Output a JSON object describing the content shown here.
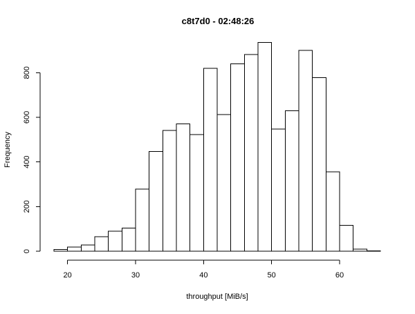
{
  "chart_data": {
    "type": "bar",
    "title": "c8t7d0 - 02:48:26",
    "xlabel": "throughput [MiB/s]",
    "ylabel": "Frequency",
    "xlim": [
      18,
      66
    ],
    "ylim": [
      0,
      940
    ],
    "x_ticks": [
      20,
      30,
      40,
      50,
      60
    ],
    "y_ticks": [
      0,
      200,
      400,
      600,
      800
    ],
    "bin_width": 2,
    "bins_start": [
      18,
      20,
      22,
      24,
      26,
      28,
      30,
      32,
      34,
      36,
      38,
      40,
      42,
      44,
      46,
      48,
      50,
      52,
      54,
      56,
      58,
      60,
      62,
      64
    ],
    "values": [
      8,
      18,
      28,
      65,
      90,
      103,
      278,
      447,
      541,
      570,
      522,
      820,
      613,
      840,
      881,
      935,
      548,
      630,
      900,
      778,
      355,
      116,
      9,
      2
    ],
    "grid": false,
    "legend": "none"
  }
}
